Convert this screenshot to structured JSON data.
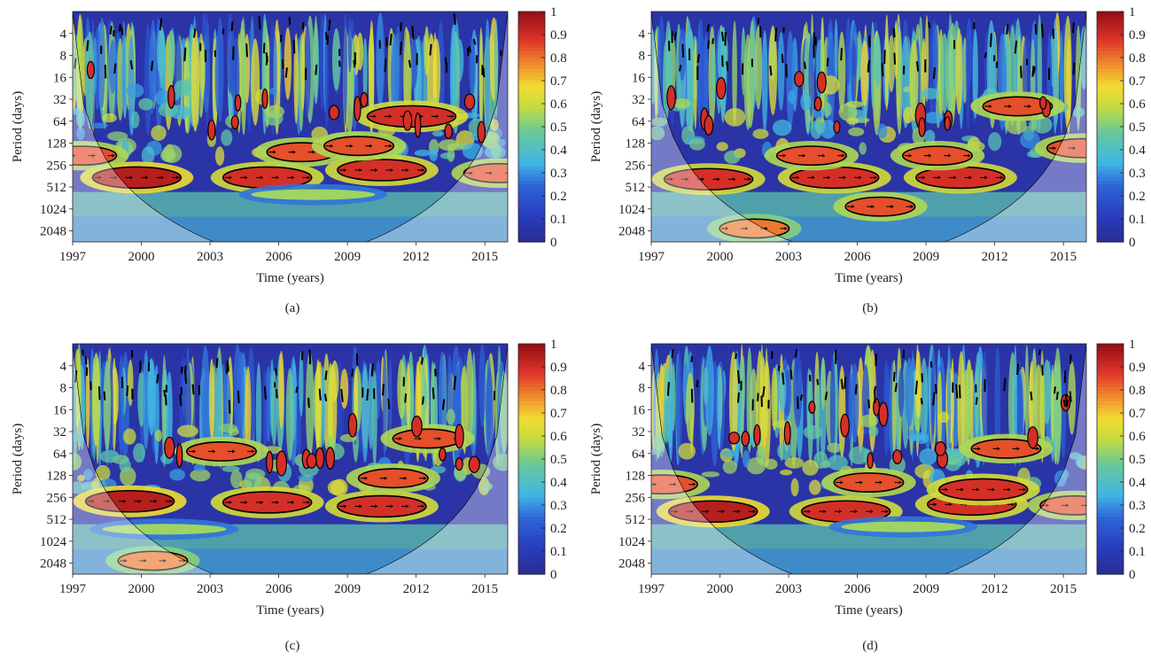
{
  "figure": {
    "panels": [
      {
        "label": "(a)",
        "xlabel": "Time (years)",
        "ylabel": "Period (days)"
      },
      {
        "label": "(b)",
        "xlabel": "Time (years)",
        "ylabel": "Period (days)"
      },
      {
        "label": "(c)",
        "xlabel": "Time (years)",
        "ylabel": "Period (days)"
      },
      {
        "label": "(d)",
        "xlabel": "Time (years)",
        "ylabel": "Period (days)"
      }
    ]
  },
  "colors": {
    "dark_blue": "#2b2c8e",
    "blue": "#2f57c6",
    "cyan": "#3fb6e6",
    "teal_green": "#66c89a",
    "yellow": "#f2dc33",
    "orange": "#f08a2c",
    "red": "#e0352a",
    "dark_red": "#b0161c",
    "coi_shade": "rgba(255,255,255,0.35)",
    "contour": "#000000",
    "arrow": "#000000"
  },
  "chart_data": [
    {
      "type": "heatmap",
      "panel": "(a)",
      "title": "",
      "xlabel": "Time (years)",
      "ylabel": "Period (days)",
      "x_ticks": [
        1997,
        2000,
        2003,
        2006,
        2009,
        2012,
        2015
      ],
      "y_ticks": [
        4,
        8,
        16,
        32,
        64,
        128,
        256,
        512,
        1024,
        2048
      ],
      "xlim": [
        1997,
        2016
      ],
      "ylim": [
        2,
        2900
      ],
      "y_scale": "log2",
      "y_reversed": true,
      "colorbar_ticks": [
        "0",
        "0.1",
        "0.2",
        "0.3",
        "0.4",
        "0.5",
        "0.6",
        "0.7",
        "0.8",
        "0.9",
        "1"
      ],
      "colorbar_range": [
        0,
        1
      ],
      "colormap": "jet",
      "regions": [
        {
          "year": 1999.8,
          "period": 380,
          "coherence": 0.95
        },
        {
          "year": 2005.5,
          "period": 380,
          "coherence": 0.9
        },
        {
          "year": 2010.5,
          "period": 300,
          "coherence": 0.9
        },
        {
          "year": 2007.0,
          "period": 170,
          "coherence": 0.85
        },
        {
          "year": 1997.4,
          "period": 190,
          "coherence": 0.85
        },
        {
          "year": 2011.8,
          "period": 55,
          "coherence": 0.9
        },
        {
          "year": 2009.5,
          "period": 140,
          "coherence": 0.85
        },
        {
          "year": 2007.5,
          "period": 650,
          "coherence": 0.55
        },
        {
          "year": 2015.6,
          "period": 330,
          "coherence": 0.85
        }
      ]
    },
    {
      "type": "heatmap",
      "panel": "(b)",
      "title": "",
      "xlabel": "Time (years)",
      "ylabel": "Period (days)",
      "x_ticks": [
        1997,
        2000,
        2003,
        2006,
        2009,
        2012,
        2015
      ],
      "y_ticks": [
        4,
        8,
        16,
        32,
        64,
        128,
        256,
        512,
        1024,
        2048
      ],
      "xlim": [
        1997,
        2016
      ],
      "ylim": [
        2,
        2900
      ],
      "y_scale": "log2",
      "y_reversed": true,
      "colorbar_ticks": [
        "0",
        "0.1",
        "0.2",
        "0.3",
        "0.4",
        "0.5",
        "0.6",
        "0.7",
        "0.8",
        "0.9",
        "1"
      ],
      "colorbar_range": [
        0,
        1
      ],
      "colormap": "jet",
      "regions": [
        {
          "year": 1999.5,
          "period": 400,
          "coherence": 0.9
        },
        {
          "year": 2005.0,
          "period": 380,
          "coherence": 0.9
        },
        {
          "year": 2010.5,
          "period": 380,
          "coherence": 0.9
        },
        {
          "year": 2007.0,
          "period": 950,
          "coherence": 0.85
        },
        {
          "year": 2001.5,
          "period": 1900,
          "coherence": 0.8
        },
        {
          "year": 2004.0,
          "period": 190,
          "coherence": 0.85
        },
        {
          "year": 2009.5,
          "period": 190,
          "coherence": 0.85
        },
        {
          "year": 2013.0,
          "period": 40,
          "coherence": 0.85
        },
        {
          "year": 2015.8,
          "period": 150,
          "coherence": 0.85
        }
      ]
    },
    {
      "type": "heatmap",
      "panel": "(c)",
      "title": "",
      "xlabel": "Time (years)",
      "ylabel": "Period (days)",
      "x_ticks": [
        1997,
        2000,
        2003,
        2006,
        2009,
        2012,
        2015
      ],
      "y_ticks": [
        4,
        8,
        16,
        32,
        64,
        128,
        256,
        512,
        1024,
        2048
      ],
      "xlim": [
        1997,
        2016
      ],
      "ylim": [
        2,
        2900
      ],
      "y_scale": "log2",
      "y_reversed": true,
      "colorbar_ticks": [
        "0",
        "0.1",
        "0.2",
        "0.3",
        "0.4",
        "0.5",
        "0.6",
        "0.7",
        "0.8",
        "0.9",
        "1"
      ],
      "colorbar_range": [
        0,
        1
      ],
      "colormap": "jet",
      "regions": [
        {
          "year": 1999.5,
          "period": 290,
          "coherence": 0.95
        },
        {
          "year": 2005.5,
          "period": 300,
          "coherence": 0.9
        },
        {
          "year": 2010.5,
          "period": 340,
          "coherence": 0.9
        },
        {
          "year": 2011.0,
          "period": 140,
          "coherence": 0.85
        },
        {
          "year": 2000.5,
          "period": 1900,
          "coherence": 0.8
        },
        {
          "year": 2003.5,
          "period": 60,
          "coherence": 0.85
        },
        {
          "year": 2012.5,
          "period": 40,
          "coherence": 0.85
        },
        {
          "year": 2001.0,
          "period": 700,
          "coherence": 0.55
        }
      ]
    },
    {
      "type": "heatmap",
      "panel": "(d)",
      "title": "",
      "xlabel": "Time (years)",
      "ylabel": "Period (days)",
      "x_ticks": [
        1997,
        2000,
        2003,
        2006,
        2009,
        2012,
        2015
      ],
      "y_ticks": [
        4,
        8,
        16,
        32,
        64,
        128,
        256,
        512,
        1024,
        2048
      ],
      "xlim": [
        1997,
        2016
      ],
      "ylim": [
        2,
        2900
      ],
      "y_scale": "log2",
      "y_reversed": true,
      "colorbar_ticks": [
        "0",
        "0.1",
        "0.2",
        "0.3",
        "0.4",
        "0.5",
        "0.6",
        "0.7",
        "0.8",
        "0.9",
        "1"
      ],
      "colorbar_range": [
        0,
        1
      ],
      "colormap": "jet",
      "regions": [
        {
          "year": 1999.7,
          "period": 400,
          "coherence": 0.95
        },
        {
          "year": 2005.5,
          "period": 400,
          "coherence": 0.9
        },
        {
          "year": 2011.0,
          "period": 320,
          "coherence": 0.9
        },
        {
          "year": 2011.5,
          "period": 200,
          "coherence": 0.9
        },
        {
          "year": 2006.5,
          "period": 160,
          "coherence": 0.85
        },
        {
          "year": 2012.5,
          "period": 55,
          "coherence": 0.85
        },
        {
          "year": 1997.5,
          "period": 170,
          "coherence": 0.85
        },
        {
          "year": 2015.5,
          "period": 330,
          "coherence": 0.85
        },
        {
          "year": 2008.0,
          "period": 650,
          "coherence": 0.55
        }
      ]
    }
  ]
}
